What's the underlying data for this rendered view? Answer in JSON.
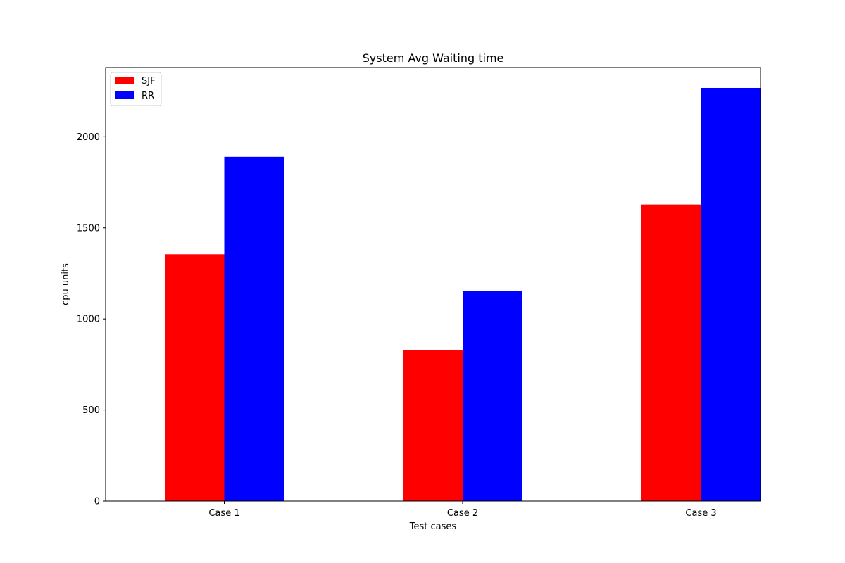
{
  "chart_data": {
    "type": "bar",
    "title": "System Avg Waiting time",
    "xlabel": "Test cases",
    "ylabel": "cpu units",
    "categories": [
      "Case 1",
      "Case 2",
      "Case 3"
    ],
    "series": [
      {
        "name": "SJF",
        "color": "#ff0000",
        "values": [
          1355,
          828,
          1628
        ]
      },
      {
        "name": "RR",
        "color": "#0000ff",
        "values": [
          1890,
          1152,
          2268
        ]
      }
    ],
    "ylim": [
      0,
      2380
    ],
    "yticks": [
      0,
      500,
      1000,
      1500,
      2000
    ],
    "grid": false,
    "legend": "top-left"
  }
}
